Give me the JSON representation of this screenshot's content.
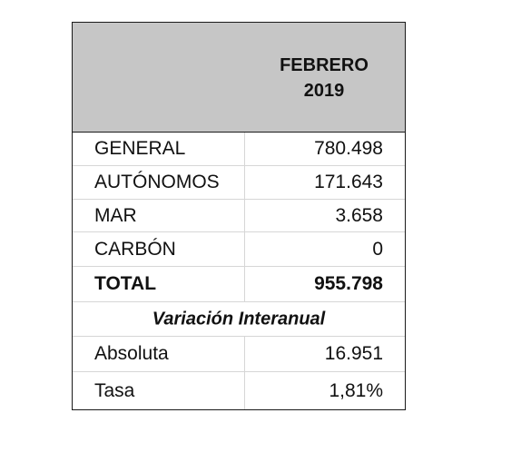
{
  "header": {
    "title_line1": "FEBRERO",
    "title_line2": "2019"
  },
  "rows": [
    {
      "label": "GENERAL",
      "value": "780.498"
    },
    {
      "label": "AUTÓNOMOS",
      "value": "171.643"
    },
    {
      "label": "MAR",
      "value": "3.658"
    },
    {
      "label": "CARBÓN",
      "value": "0"
    }
  ],
  "total": {
    "label": "TOTAL",
    "value": "955.798"
  },
  "section": {
    "title": "Variación Interanual"
  },
  "variation": [
    {
      "label": "Absoluta",
      "value": "16.951"
    },
    {
      "label": "Tasa",
      "value": "1,81%"
    }
  ]
}
